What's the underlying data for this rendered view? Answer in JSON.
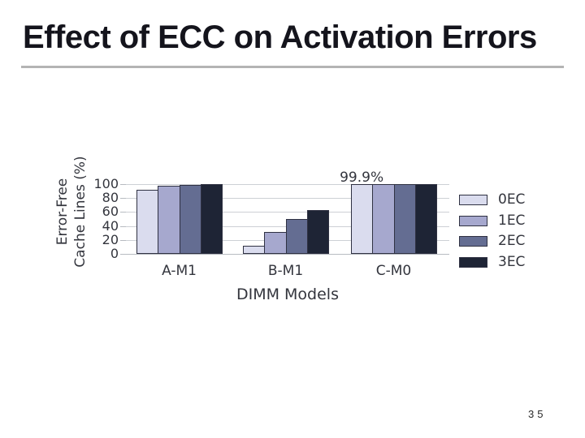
{
  "slide": {
    "title": "Effect of ECC on Activation Errors",
    "page_number": "35"
  },
  "chart_data": {
    "type": "bar",
    "categories": [
      "A-M1",
      "B-M1",
      "C-M0"
    ],
    "series": [
      {
        "name": "0EC",
        "color": "#dadcee",
        "values": [
          92,
          12,
          99.9
        ]
      },
      {
        "name": "1EC",
        "color": "#a6a8ce",
        "values": [
          98,
          31,
          99.9
        ]
      },
      {
        "name": "2EC",
        "color": "#646d92",
        "values": [
          99,
          50,
          99.9
        ]
      },
      {
        "name": "3EC",
        "color": "#1e2435",
        "values": [
          100,
          63,
          99.9
        ]
      }
    ],
    "xlabel": "DIMM Models",
    "ylabel": "Error-Free Cache Lines (%)",
    "ylabel_lines": [
      "Error-Free",
      "Cache Lines (%)"
    ],
    "yticks": [
      0,
      20,
      40,
      60,
      80,
      100
    ],
    "ylim": [
      0,
      100
    ],
    "grid": true,
    "legend_position": "right",
    "legend_labels": [
      "0EC",
      "1EC",
      "2EC",
      "3EC"
    ],
    "annotation": {
      "text": "99.9%",
      "category": "C-M0",
      "series": "0EC"
    },
    "colors": {
      "gridline": "#cdd0d5",
      "bar_border": "#2f3142",
      "text": "#33353d",
      "title": "#14141c",
      "divider": "#b4b4b4"
    }
  }
}
